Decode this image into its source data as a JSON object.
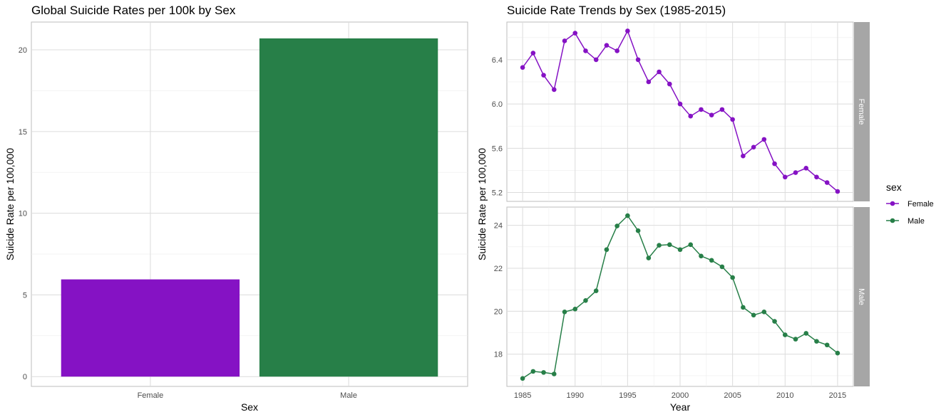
{
  "chart_data": [
    {
      "type": "bar",
      "title": "Global Suicide Rates per 100k by Sex",
      "xlabel": "Sex",
      "ylabel": "Suicide Rate per 100,000",
      "categories": [
        "Female",
        "Male"
      ],
      "values": [
        5.95,
        20.7
      ],
      "colors": [
        "#8512C4",
        "#277F48"
      ],
      "ylim": [
        -0.6,
        21.7
      ],
      "yticks": [
        0,
        5,
        10,
        15,
        20
      ],
      "grid": true
    },
    {
      "type": "line",
      "title": "Suicide Rate Trends by Sex (1985-2015)",
      "xlabel": "Year",
      "ylabel": "Suicide Rate per 100,000",
      "xlim": [
        1983.5,
        2016.5
      ],
      "xticks": [
        1985,
        1990,
        1995,
        2000,
        2005,
        2010,
        2015
      ],
      "legend": {
        "title": "sex",
        "position": "right"
      },
      "grid": true,
      "series": [
        {
          "name": "Female",
          "color": "#8512C4",
          "x": [
            1985,
            1986,
            1987,
            1988,
            1989,
            1990,
            1991,
            1992,
            1993,
            1994,
            1995,
            1996,
            1997,
            1998,
            1999,
            2000,
            2001,
            2002,
            2003,
            2004,
            2005,
            2006,
            2007,
            2008,
            2009,
            2010,
            2011,
            2012,
            2013,
            2014,
            2015
          ],
          "values": [
            6.33,
            6.46,
            6.26,
            6.13,
            6.57,
            6.64,
            6.48,
            6.4,
            6.53,
            6.48,
            6.66,
            6.4,
            6.2,
            6.29,
            6.18,
            6.0,
            5.89,
            5.95,
            5.9,
            5.95,
            5.86,
            5.53,
            5.61,
            5.68,
            5.46,
            5.34,
            5.38,
            5.42,
            5.34,
            5.29,
            5.21
          ],
          "ylim": [
            5.12,
            6.74
          ],
          "yticks": [
            5.2,
            5.6,
            6.0,
            6.4
          ],
          "ytick_labels": [
            "5.2",
            "5.6",
            "6.0",
            "6.4"
          ],
          "strip_label": "Female"
        },
        {
          "name": "Male",
          "color": "#277F48",
          "x": [
            1985,
            1986,
            1987,
            1988,
            1989,
            1990,
            1991,
            1992,
            1993,
            1994,
            1995,
            1996,
            1997,
            1998,
            1999,
            2000,
            2001,
            2002,
            2003,
            2004,
            2005,
            2006,
            2007,
            2008,
            2009,
            2010,
            2011,
            2012,
            2013,
            2014,
            2015
          ],
          "values": [
            16.87,
            17.2,
            17.15,
            17.08,
            19.97,
            20.1,
            20.5,
            20.95,
            22.87,
            23.97,
            24.45,
            23.75,
            22.48,
            23.07,
            23.1,
            22.87,
            23.1,
            22.57,
            22.37,
            22.07,
            21.57,
            20.18,
            19.82,
            19.97,
            19.53,
            18.9,
            18.7,
            18.97,
            18.6,
            18.43,
            18.05
          ],
          "ylim": [
            16.5,
            24.85
          ],
          "yticks": [
            18,
            20,
            22,
            24
          ],
          "ytick_labels": [
            "18",
            "20",
            "22",
            "24"
          ],
          "strip_label": "Male"
        }
      ]
    }
  ]
}
